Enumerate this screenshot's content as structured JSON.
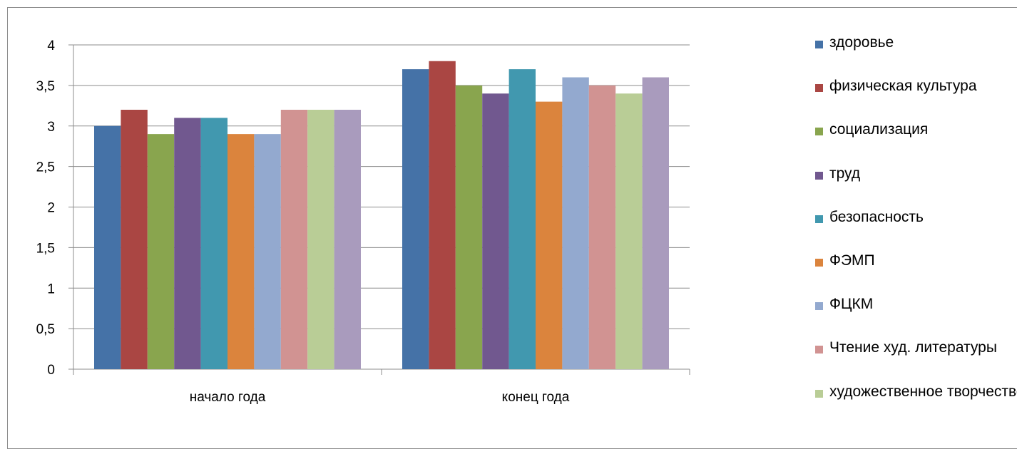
{
  "chart_data": {
    "type": "bar",
    "categories": [
      "начало года",
      "конец года"
    ],
    "ylim": [
      0,
      4
    ],
    "yticks": [
      "0",
      "0,5",
      "1",
      "1,5",
      "2",
      "2,5",
      "3",
      "3,5",
      "4"
    ],
    "grid": true,
    "legend_position": "right",
    "series": [
      {
        "name": "здоровье",
        "color": "#4572A7",
        "values": [
          3.0,
          3.7
        ]
      },
      {
        "name": "физическая культура",
        "color": "#AA4643",
        "values": [
          3.2,
          3.8
        ]
      },
      {
        "name": "социализация",
        "color": "#89A54E",
        "values": [
          2.9,
          3.5
        ]
      },
      {
        "name": "труд",
        "color": "#71588F",
        "values": [
          3.1,
          3.4
        ]
      },
      {
        "name": "безопасность",
        "color": "#4198AF",
        "values": [
          3.1,
          3.7
        ]
      },
      {
        "name": "ФЭМП",
        "color": "#DB843D",
        "values": [
          2.9,
          3.3
        ]
      },
      {
        "name": "ФЦКМ",
        "color": "#93A9CF",
        "values": [
          2.9,
          3.6
        ]
      },
      {
        "name": "Чтение худ. литературы",
        "color": "#D19392",
        "values": [
          3.2,
          3.5
        ]
      },
      {
        "name": "художественное творчество",
        "color": "#B9CD96",
        "values": [
          3.2,
          3.4
        ]
      },
      {
        "name": "",
        "color": "#A99BBD",
        "values": [
          3.2,
          3.6
        ]
      }
    ]
  }
}
